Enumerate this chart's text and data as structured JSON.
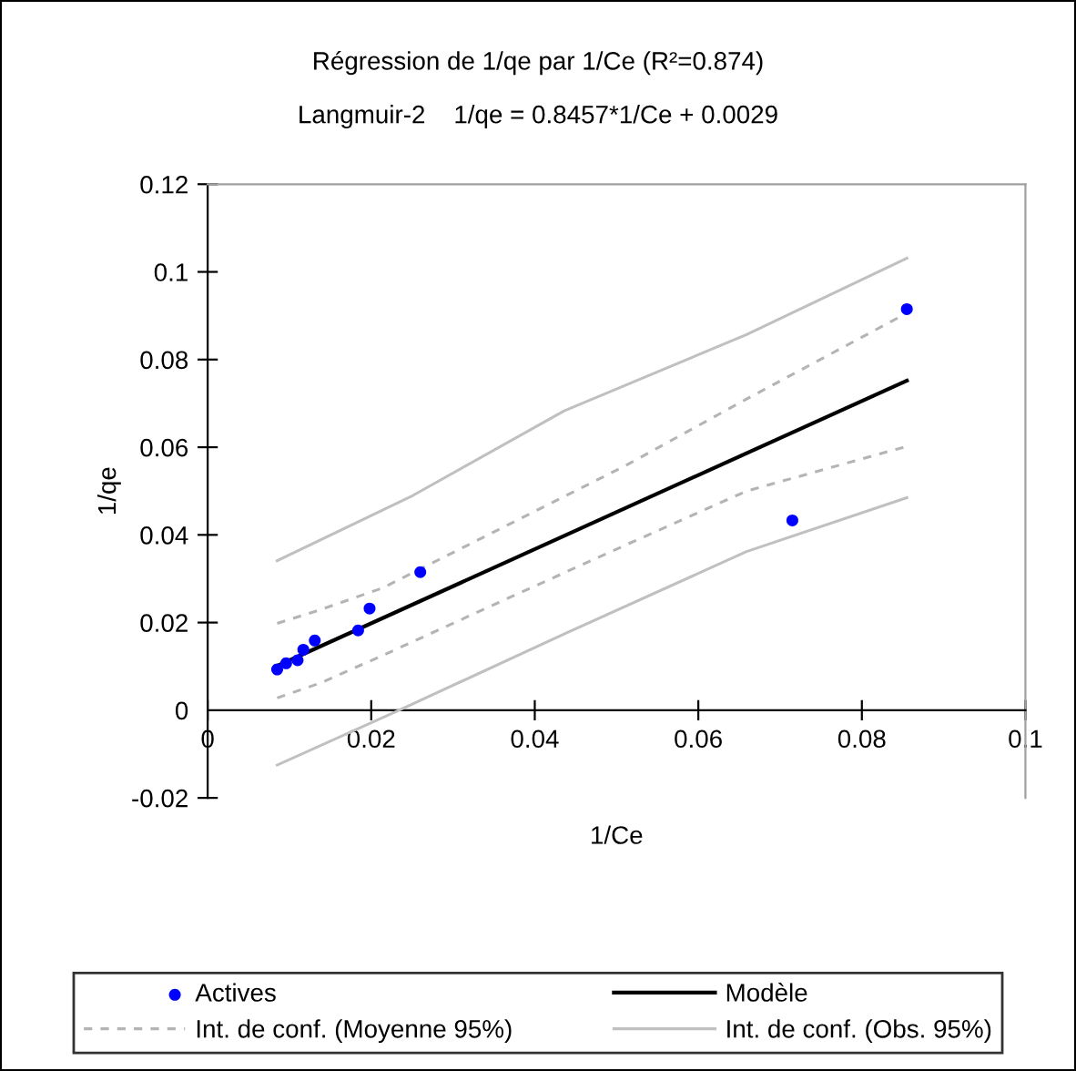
{
  "chart_data": {
    "type": "scatter",
    "title": "Régression de 1/qe par 1/Ce (R²=0.874)",
    "subtitle": "Langmuir-2    1/qe = 0.8457*1/Ce + 0.0029",
    "xlabel": "1/Ce",
    "ylabel": "1/qe",
    "xlim": [
      0,
      0.1
    ],
    "xticks": [
      0,
      0.02,
      0.04,
      0.06,
      0.08,
      0.1
    ],
    "ylim": [
      -0.02,
      0.12
    ],
    "yticks": [
      -0.02,
      0,
      0.02,
      0.04,
      0.06,
      0.08,
      0.1,
      0.12
    ],
    "grid": false,
    "legend": "bottom",
    "series": [
      {
        "name": "Actives",
        "marker": "circle",
        "color": "#0000ff",
        "x": [
          0.0085,
          0.0096,
          0.011,
          0.0117,
          0.0131,
          0.0184,
          0.0198,
          0.026,
          0.0715,
          0.0855
        ],
        "values": [
          0.0093,
          0.0107,
          0.0114,
          0.0138,
          0.0159,
          0.0182,
          0.0232,
          0.0315,
          0.0433,
          0.0915
        ]
      },
      {
        "name": "Modèle",
        "type": "line",
        "line_style": "solid",
        "color": "#000000",
        "x": [
          0.0085,
          0.0855
        ],
        "values": [
          0.0101,
          0.0752
        ]
      },
      {
        "name": "Int. de conf. (Moyenne 95%)",
        "type": "line",
        "line_style": "dashed",
        "color": "#b4b4b4",
        "x": [
          0.0085,
          0.0139,
          0.0214,
          0.0362,
          0.051,
          0.0659,
          0.0855
        ],
        "values": [
          0.0198,
          0.023,
          0.0279,
          0.0418,
          0.0557,
          0.071,
          0.0906
        ]
      },
      {
        "type": "line",
        "line_style": "dashed",
        "color": "#b4b4b4",
        "x": [
          0.0085,
          0.0139,
          0.0214,
          0.0362,
          0.051,
          0.0659,
          0.0855
        ],
        "values": [
          0.0028,
          0.0063,
          0.0125,
          0.0251,
          0.0376,
          0.05,
          0.0602
        ]
      },
      {
        "name": "Int. de conf. (Obs. 95%)",
        "type": "line",
        "line_style": "solid",
        "color": "#c0c0c0",
        "x": [
          0.0085,
          0.0251,
          0.0436,
          0.0659,
          0.0855
        ],
        "values": [
          0.0341,
          0.049,
          0.0683,
          0.0857,
          0.1031
        ]
      },
      {
        "type": "line",
        "line_style": "solid",
        "color": "#c0c0c0",
        "x": [
          0.0085,
          0.0234,
          0.0436,
          0.0659,
          0.0855
        ],
        "values": [
          -0.0125,
          0,
          0.0174,
          0.0362,
          0.0485
        ]
      }
    ]
  }
}
